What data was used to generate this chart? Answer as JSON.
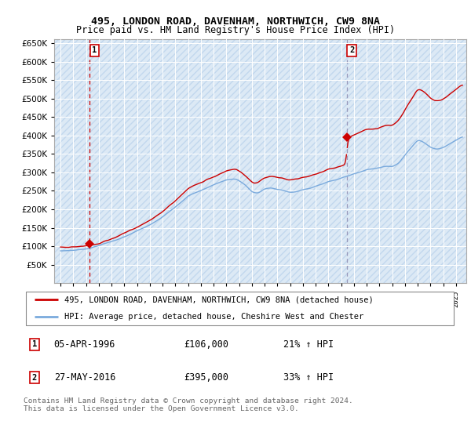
{
  "title1": "495, LONDON ROAD, DAVENHAM, NORTHWICH, CW9 8NA",
  "title2": "Price paid vs. HM Land Registry's House Price Index (HPI)",
  "background_color": "#dce9f5",
  "hatch_color": "#c2d8ee",
  "grid_color": "#ffffff",
  "red_line_color": "#cc0000",
  "blue_line_color": "#7aaadd",
  "vline1_color": "#cc0000",
  "vline2_color": "#9999bb",
  "sale1_date": 1996.27,
  "sale1_price": 106000,
  "sale1_label": "1",
  "sale1_year_label": "05-APR-1996",
  "sale1_price_label": "£106,000",
  "sale1_hpi": "21% ↑ HPI",
  "sale2_date": 2016.42,
  "sale2_price": 395000,
  "sale2_label": "2",
  "sale2_year_label": "27-MAY-2016",
  "sale2_price_label": "£395,000",
  "sale2_hpi": "33% ↑ HPI",
  "ylim_min": 0,
  "ylim_max": 660000,
  "yticks": [
    0,
    50000,
    100000,
    150000,
    200000,
    250000,
    300000,
    350000,
    400000,
    450000,
    500000,
    550000,
    600000,
    650000
  ],
  "xlim_min": 1993.5,
  "xlim_max": 2025.8,
  "legend_line1": "495, LONDON ROAD, DAVENHAM, NORTHWICH, CW9 8NA (detached house)",
  "legend_line2": "HPI: Average price, detached house, Cheshire West and Chester",
  "footer": "Contains HM Land Registry data © Crown copyright and database right 2024.\nThis data is licensed under the Open Government Licence v3.0."
}
